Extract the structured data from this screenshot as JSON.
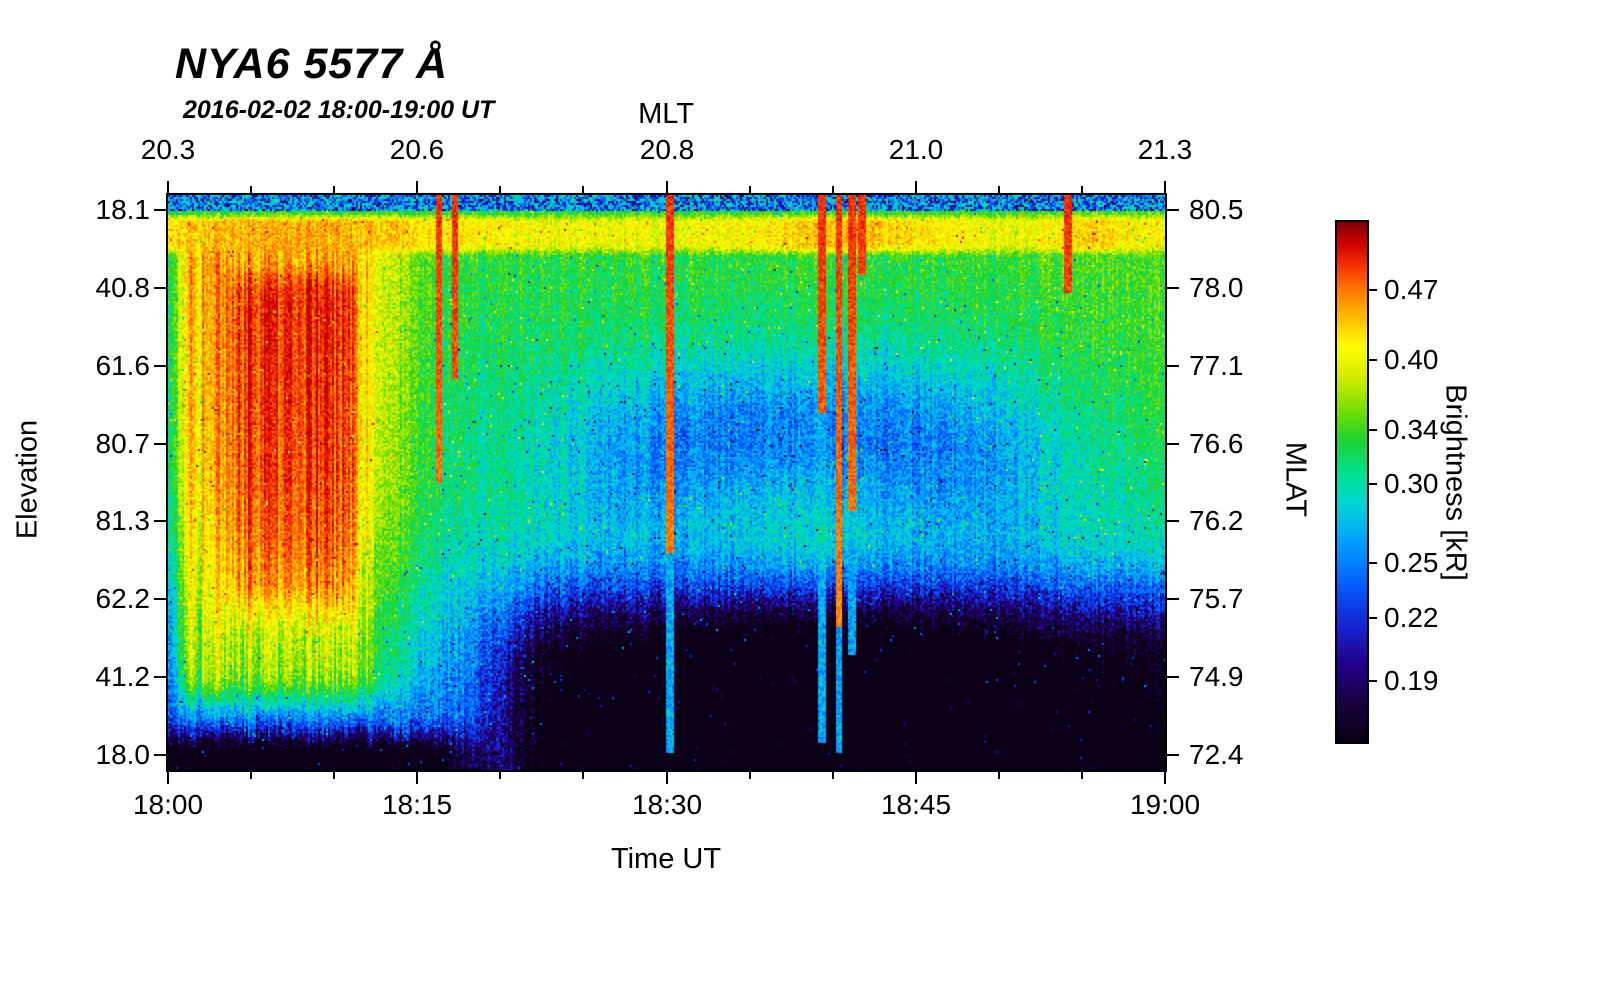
{
  "title": "NYA6 5577 Å",
  "subtitle": "2016-02-02 18:00-19:00 UT",
  "axes": {
    "top": {
      "label": "MLT",
      "ticks": [
        "20.3",
        "20.6",
        "20.8",
        "21.0",
        "21.3"
      ]
    },
    "bottom": {
      "label": "Time UT",
      "ticks": [
        "18:00",
        "18:15",
        "18:30",
        "18:45",
        "19:00"
      ]
    },
    "left": {
      "label": "Elevation",
      "ticks": [
        "18.1",
        "40.8",
        "61.6",
        "80.7",
        "81.3",
        "62.2",
        "41.2",
        "18.0"
      ]
    },
    "right": {
      "label": "MLAT",
      "ticks": [
        "80.5",
        "78.0",
        "77.1",
        "76.6",
        "76.2",
        "75.7",
        "74.9",
        "72.4"
      ]
    }
  },
  "colorbar": {
    "label": "Brightness [kR]",
    "tick_labels": [
      "0.47",
      "0.40",
      "0.34",
      "0.30",
      "0.25",
      "0.22",
      "0.19"
    ],
    "tick_values": [
      0.47,
      0.4,
      0.34,
      0.3,
      0.25,
      0.22,
      0.19
    ],
    "vmin": 0.165,
    "vmax": 0.55,
    "scale": "log"
  },
  "chart_data": {
    "type": "heatmap",
    "title": "NYA6 5577 Å",
    "subtitle": "2016-02-02 18:00-19:00 UT",
    "x_axis": {
      "label": "Time UT",
      "ticks": [
        "18:00",
        "18:15",
        "18:30",
        "18:45",
        "19:00"
      ],
      "minor_ticks_per_major": 3
    },
    "x_axis_top": {
      "label": "MLT",
      "ticks": [
        20.3,
        20.6,
        20.8,
        21.0,
        21.3
      ]
    },
    "y_axis": {
      "label": "Elevation",
      "ticks": [
        18.1,
        40.8,
        61.6,
        80.7,
        81.3,
        62.2,
        41.2,
        18.0
      ]
    },
    "y_axis_right": {
      "label": "MLAT",
      "ticks": [
        80.5,
        78.0,
        77.1,
        76.6,
        76.2,
        75.7,
        74.9,
        72.4
      ]
    },
    "value_axis": {
      "label": "Brightness [kR]",
      "min": 0.165,
      "max": 0.55,
      "scale": "log",
      "ticks": [
        0.47,
        0.4,
        0.34,
        0.3,
        0.25,
        0.22,
        0.19
      ]
    },
    "features": [
      "Intense red/orange auroral emission (0.42-0.52 kR) from 18:00 to about 18:12 UT over most elevation angles, with sharp right edge",
      "Yellow/orange-red horizontal enhancement band near the top (low elevation) across the whole hour",
      "Diffuse green/cyan background with a blue low-brightness depression at mid elevations around 18:25-18:50 UT",
      "Very dark (near-black, ~0.17 kR) region at low elevations in the lower right after ~18:20 UT",
      "Narrow vertical bright streaks near 18:16, 18:17, 18:30, 18:39-18:42 and 18:54 UT",
      "Noisy dark-blue/green speckle rows along the extreme top edge"
    ],
    "colormap_stops": [
      [
        0.0,
        8,
        0,
        16
      ],
      [
        0.07,
        25,
        0,
        60
      ],
      [
        0.15,
        35,
        0,
        140
      ],
      [
        0.23,
        20,
        40,
        215
      ],
      [
        0.31,
        0,
        100,
        255
      ],
      [
        0.39,
        0,
        165,
        255
      ],
      [
        0.46,
        0,
        215,
        210
      ],
      [
        0.52,
        0,
        225,
        140
      ],
      [
        0.58,
        30,
        210,
        50
      ],
      [
        0.64,
        120,
        225,
        0
      ],
      [
        0.7,
        210,
        235,
        0
      ],
      [
        0.76,
        255,
        255,
        0
      ],
      [
        0.82,
        255,
        185,
        0
      ],
      [
        0.87,
        255,
        120,
        0
      ],
      [
        0.92,
        245,
        45,
        0
      ],
      [
        0.96,
        205,
        0,
        0
      ],
      [
        1.0,
        128,
        0,
        0
      ]
    ],
    "render": {
      "seed": 20160202,
      "cell": 2,
      "vmin": 0.165,
      "vmax": 0.55,
      "clip": [
        0.168,
        0.53
      ],
      "noise": 0.05,
      "dips": [
        [
          0.6,
          0.2,
          0.4,
          0.14,
          0.065
        ],
        [
          0.8,
          0.13,
          0.47,
          0.18,
          0.045
        ],
        [
          0.47,
          0.1,
          0.52,
          0.15,
          0.03
        ]
      ],
      "dark_br": {
        "y0": 0.58,
        "y1": 0.82,
        "amount": 0.1,
        "extra": 0.05,
        "xc": 0.66,
        "xs": 0.22
      },
      "dark_bl": {
        "y0": 0.9,
        "amount": 0.11
      },
      "band": {
        "y0": 0.03,
        "y1": 0.11,
        "level": 0.4
      },
      "streak_w": 0.0035,
      "streaks": [
        {
          "x": 0.272,
          "red_to": 0.5,
          "tail_to": 0.78
        },
        {
          "x": 0.288,
          "red_to": 0.32,
          "tail_to": 0.5
        },
        {
          "x": 0.503,
          "red_to": 0.62,
          "tail_to": 0.97
        },
        {
          "x": 0.655,
          "red_to": 0.38,
          "tail_to": 0.95
        },
        {
          "x": 0.672,
          "red_to": 0.75,
          "tail_to": 0.97
        },
        {
          "x": 0.685,
          "red_to": 0.55,
          "tail_to": 0.8
        },
        {
          "x": 0.695,
          "red_to": 0.14,
          "tail_to": 0.3
        },
        {
          "x": 0.902,
          "red_to": 0.17,
          "tail_to": 0.2
        }
      ]
    }
  }
}
